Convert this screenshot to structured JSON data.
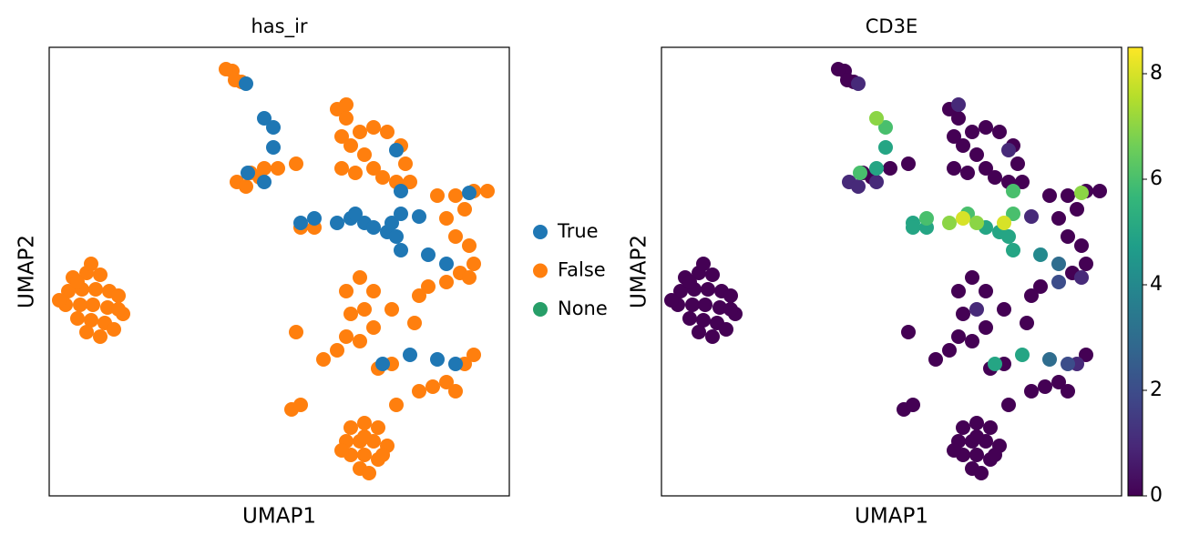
{
  "chart_data": [
    {
      "type": "scatter",
      "title": "has_ir",
      "xlabel": "UMAP1",
      "ylabel": "UMAP2",
      "xlim": [
        0,
        505
      ],
      "ylim": [
        0,
        493
      ],
      "legend": "right",
      "series": [
        {
          "name": "True",
          "color": "#1f77b4",
          "x": [
            216,
            236,
            246,
            246,
            218,
            236,
            276,
            291,
            316,
            331,
            346,
            336,
            356,
            371,
            376,
            386,
            381,
            406,
            386,
            416,
            436,
            461,
            386,
            366,
            396,
            426,
            446,
            381
          ],
          "y": [
            453,
            415,
            405,
            383,
            355,
            345,
            300,
            305,
            300,
            305,
            300,
            310,
            295,
            290,
            300,
            310,
            285,
            307,
            270,
            265,
            255,
            333,
            335,
            145,
            155,
            150,
            145,
            380
          ]
        },
        {
          "name": "False",
          "color": "#ff7f0e",
          "x": [
            26,
            41,
            56,
            21,
            36,
            51,
            66,
            76,
            18,
            34,
            48,
            64,
            81,
            31,
            46,
            61,
            71,
            41,
            46,
            11,
            56,
            76,
            31,
            331,
            346,
            361,
            326,
            341,
            356,
            371,
            331,
            346,
            361,
            341,
            351,
            346,
            321,
            366,
            201,
            211,
            204,
            194,
            206,
            221,
            236,
            251,
            271,
            216,
            231,
            316,
            326,
            321,
            331,
            346,
            356,
            366,
            381,
            391,
            386,
            371,
            356,
            341,
            396,
            326,
            336,
            321,
            426,
            446,
            466,
            481,
            436,
            456,
            461,
            466,
            451,
            436,
            416,
            406,
            461,
            446,
            326,
            341,
            356,
            346,
            331,
            326,
            341,
            356,
            271,
            301,
            316,
            291,
            406,
            421,
            436,
            446,
            456,
            466,
            361,
            376,
            381,
            266,
            276,
            401,
            376,
            276
          ],
          "y": [
            240,
            245,
            243,
            225,
            227,
            227,
            225,
            220,
            210,
            210,
            210,
            207,
            200,
            195,
            193,
            190,
            183,
            180,
            255,
            215,
            175,
            205,
            235,
            75,
            80,
            75,
            60,
            60,
            60,
            55,
            45,
            45,
            40,
            30,
            25,
            65,
            50,
            45,
            467,
            455,
            457,
            469,
            345,
            355,
            360,
            360,
            365,
            340,
            350,
            425,
            415,
            395,
            385,
            375,
            360,
            350,
            345,
            365,
            385,
            400,
            405,
            400,
            345,
            430,
            355,
            360,
            330,
            330,
            335,
            335,
            305,
            315,
            275,
            255,
            245,
            235,
            230,
            220,
            240,
            285,
            225,
            240,
            225,
            205,
            200,
            175,
            170,
            185,
            180,
            150,
            160,
            295,
            115,
            120,
            125,
            115,
            145,
            155,
            140,
            145,
            100,
            95,
            100,
            190,
            205,
            295
          ]
        },
        {
          "name": "None",
          "color": "#279e68",
          "x": [],
          "y": []
        }
      ]
    },
    {
      "type": "scatter",
      "title": "CD3E",
      "xlabel": "UMAP1",
      "ylabel": "UMAP2",
      "xlim": [
        0,
        505
      ],
      "ylim": [
        0,
        493
      ],
      "colormap": "viridis",
      "clim": [
        0,
        8.5
      ],
      "cticks": [
        0,
        2,
        4,
        6,
        8
      ],
      "x": [
        216,
        236,
        246,
        246,
        218,
        236,
        276,
        291,
        316,
        331,
        346,
        336,
        356,
        371,
        376,
        386,
        381,
        406,
        386,
        416,
        436,
        461,
        386,
        366,
        396,
        426,
        446,
        381,
        26,
        41,
        56,
        21,
        36,
        51,
        66,
        76,
        18,
        34,
        48,
        64,
        81,
        31,
        46,
        61,
        71,
        41,
        46,
        11,
        56,
        76,
        31,
        331,
        346,
        361,
        326,
        341,
        356,
        371,
        331,
        346,
        361,
        341,
        351,
        346,
        321,
        366,
        201,
        211,
        204,
        194,
        206,
        221,
        236,
        251,
        271,
        216,
        231,
        316,
        326,
        321,
        331,
        346,
        356,
        366,
        381,
        391,
        386,
        371,
        356,
        341,
        396,
        326,
        336,
        321,
        426,
        446,
        466,
        481,
        436,
        456,
        461,
        466,
        451,
        436,
        416,
        406,
        461,
        446,
        326,
        341,
        356,
        346,
        331,
        326,
        341,
        356,
        271,
        301,
        316,
        291,
        406,
        421,
        436,
        446,
        456,
        466,
        361,
        376,
        381,
        266,
        276,
        401,
        376,
        276
      ],
      "y": [
        453,
        415,
        405,
        383,
        355,
        345,
        300,
        305,
        300,
        305,
        300,
        310,
        295,
        290,
        300,
        310,
        285,
        307,
        270,
        265,
        255,
        333,
        335,
        145,
        155,
        150,
        145,
        380,
        240,
        245,
        243,
        225,
        227,
        227,
        225,
        220,
        210,
        210,
        210,
        207,
        200,
        195,
        193,
        190,
        183,
        180,
        255,
        215,
        175,
        205,
        235,
        75,
        80,
        75,
        60,
        60,
        60,
        55,
        45,
        45,
        40,
        30,
        25,
        65,
        50,
        45,
        467,
        455,
        457,
        469,
        345,
        355,
        360,
        360,
        365,
        340,
        350,
        425,
        415,
        395,
        385,
        375,
        360,
        350,
        345,
        365,
        385,
        400,
        405,
        400,
        345,
        430,
        355,
        360,
        330,
        330,
        335,
        335,
        305,
        315,
        275,
        255,
        245,
        235,
        230,
        220,
        240,
        285,
        225,
        240,
        225,
        205,
        200,
        175,
        170,
        185,
        180,
        150,
        160,
        295,
        115,
        120,
        125,
        115,
        145,
        155,
        140,
        145,
        100,
        95,
        100,
        190,
        205,
        295
      ],
      "values": [
        1,
        7,
        6,
        5,
        6,
        1,
        5,
        6,
        7,
        8,
        7,
        6,
        5,
        5,
        8,
        6,
        5,
        1,
        5,
        4,
        3,
        7,
        6,
        5,
        5,
        3,
        2,
        1,
        0,
        0,
        0,
        0,
        0,
        0,
        0,
        0,
        0,
        0,
        0,
        0,
        0,
        0,
        0,
        0,
        0,
        0,
        0,
        0,
        0,
        0,
        0,
        0,
        0,
        0,
        0,
        0,
        0,
        0,
        0,
        0,
        0,
        0,
        0,
        0,
        0,
        0,
        0,
        0,
        0,
        0,
        1,
        0,
        5,
        0,
        0,
        1,
        0,
        0,
        0,
        0,
        0,
        0,
        0,
        0,
        0,
        0,
        0,
        0,
        0,
        0,
        0,
        1,
        0,
        0,
        0,
        0,
        0,
        0,
        0,
        0,
        0,
        0,
        0,
        2,
        0,
        0,
        1,
        0,
        0,
        0,
        0,
        1,
        0,
        0,
        0,
        0,
        0,
        0,
        0,
        5,
        0,
        0,
        0,
        0,
        1,
        0,
        0,
        0,
        0,
        0,
        0,
        0,
        0,
        5
      ]
    }
  ]
}
